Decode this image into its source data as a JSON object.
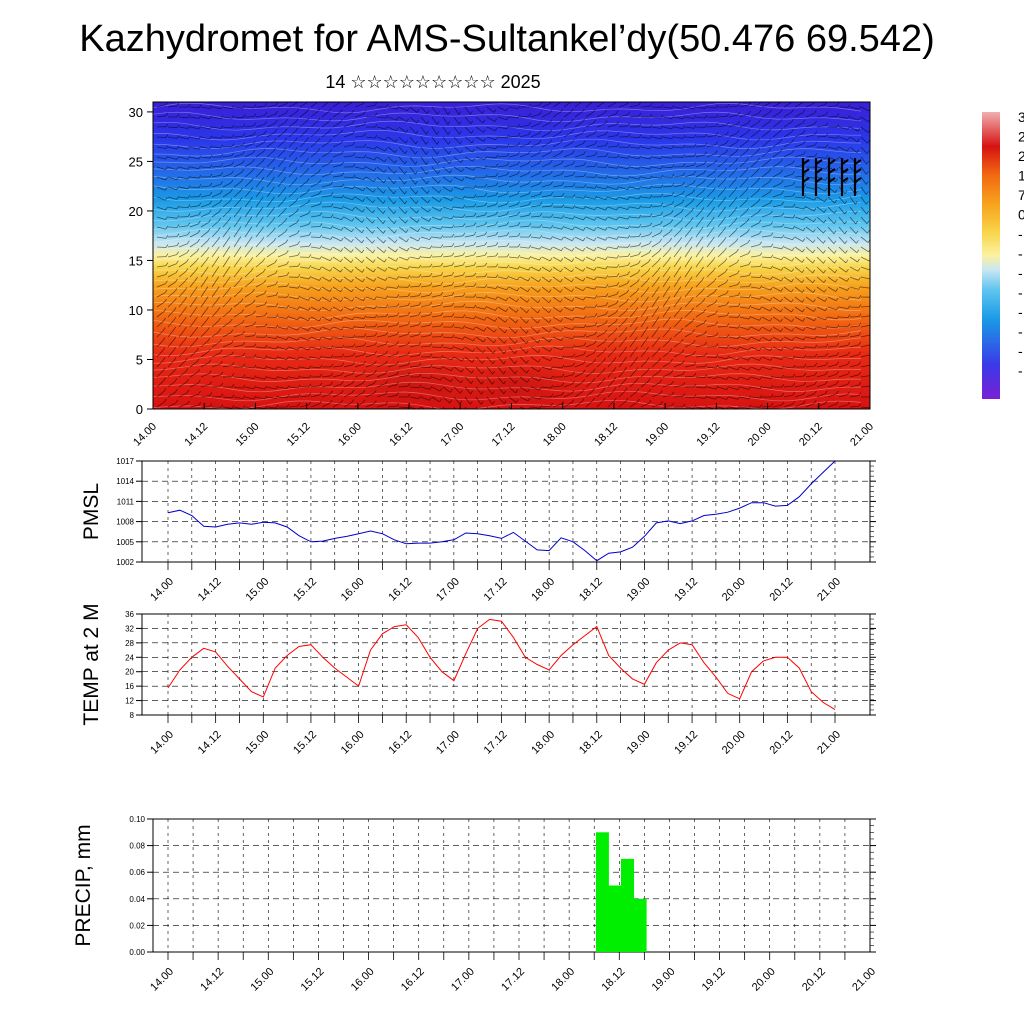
{
  "title": "Kazhydromet for AMS-Sultankel’dy(50.476 69.542)",
  "subtitle": "14 ☆☆☆☆☆☆☆☆☆ 2025",
  "chart_data": [
    {
      "type": "heatmap",
      "description_free": true,
      "xtick_labels": [
        "14.00",
        "14.12",
        "15.00",
        "15.12",
        "16.00",
        "16.12",
        "17.00",
        "17.12",
        "18.00",
        "18.12",
        "19.00",
        "19.12",
        "20.00",
        "20.12",
        "21.00"
      ],
      "ylim": [
        0,
        31
      ],
      "yticks": [
        0,
        5,
        10,
        15,
        20,
        25,
        30
      ],
      "colorbar_labels": [
        "3",
        "2",
        "2",
        "1",
        "7",
        "0",
        "-",
        "-",
        "-",
        "-",
        "-",
        "-",
        "-",
        "-"
      ]
    },
    {
      "type": "line",
      "ylabel": "PMSL",
      "ylim": [
        1002,
        1017
      ],
      "yticks": [
        1002,
        1005,
        1008,
        1011,
        1014,
        1017
      ],
      "color": "#0000cc",
      "xtick_labels": [
        "14.00",
        "14.12",
        "15.00",
        "15.12",
        "16.00",
        "16.12",
        "17.00",
        "17.12",
        "18.00",
        "18.12",
        "19.00",
        "19.12",
        "20.00",
        "20.12",
        "21.00"
      ],
      "values": [
        1009.3,
        1009.7,
        1008.9,
        1007.3,
        1007.2,
        1007.6,
        1007.8,
        1007.6,
        1007.9,
        1007.8,
        1007.2,
        1005.9,
        1005.0,
        1005.1,
        1005.5,
        1005.8,
        1006.2,
        1006.6,
        1006.2,
        1005.3,
        1004.7,
        1004.8,
        1004.8,
        1005.0,
        1005.3,
        1006.3,
        1006.2,
        1005.9,
        1005.5,
        1006.4,
        1005.1,
        1003.8,
        1003.7,
        1005.6,
        1005.0,
        1003.7,
        1002.2,
        1003.3,
        1003.5,
        1004.2,
        1005.8,
        1007.8,
        1008.1,
        1007.7,
        1008.1,
        1008.9,
        1009.1,
        1009.4,
        1010.0,
        1010.8,
        1010.8,
        1010.3,
        1010.4,
        1011.7,
        1013.6,
        1015.3,
        1017.0
      ]
    },
    {
      "type": "line",
      "ylabel": "TEMP at 2 M",
      "ylim": [
        8,
        36
      ],
      "yticks": [
        8,
        12,
        16,
        20,
        24,
        28,
        32,
        36
      ],
      "color": "#ff0000",
      "xtick_labels": [
        "14.00",
        "14.12",
        "15.00",
        "15.12",
        "16.00",
        "16.12",
        "17.00",
        "17.12",
        "18.00",
        "18.12",
        "19.00",
        "19.12",
        "20.00",
        "20.12",
        "21.00"
      ],
      "values": [
        15.5,
        20.5,
        24.0,
        26.5,
        25.5,
        21.5,
        18.0,
        14.5,
        13.0,
        21.0,
        24.5,
        27.0,
        27.5,
        24.0,
        21.0,
        18.5,
        16.0,
        26.0,
        30.5,
        32.5,
        33.0,
        29.5,
        24.0,
        20.0,
        17.5,
        25.0,
        32.0,
        34.5,
        34.0,
        29.5,
        24.0,
        22.0,
        20.5,
        24.5,
        27.5,
        30.0,
        32.5,
        24.5,
        21.0,
        18.0,
        16.5,
        22.5,
        26.0,
        28.0,
        27.5,
        22.5,
        18.5,
        14.0,
        12.5,
        20.0,
        23.0,
        24.0,
        24.0,
        21.0,
        14.5,
        11.5,
        9.5
      ]
    },
    {
      "type": "bar",
      "ylabel": "PRECIP, mm",
      "ylim": [
        0,
        0.1
      ],
      "yticks": [
        "0.00",
        "0.02",
        "0.04",
        "0.06",
        "0.08",
        "0.10"
      ],
      "color": "#00ee00",
      "xtick_labels": [
        "14.00",
        "14.12",
        "15.00",
        "15.12",
        "16.00",
        "16.12",
        "17.00",
        "17.12",
        "18.00",
        "18.12",
        "19.00",
        "19.12",
        "20.00",
        "20.12",
        "21.00"
      ],
      "bars": [
        {
          "x_hours": 102,
          "value": 0.09
        },
        {
          "x_hours": 105,
          "value": 0.05
        },
        {
          "x_hours": 108,
          "value": 0.07
        },
        {
          "x_hours": 111,
          "value": 0.04
        }
      ]
    }
  ]
}
